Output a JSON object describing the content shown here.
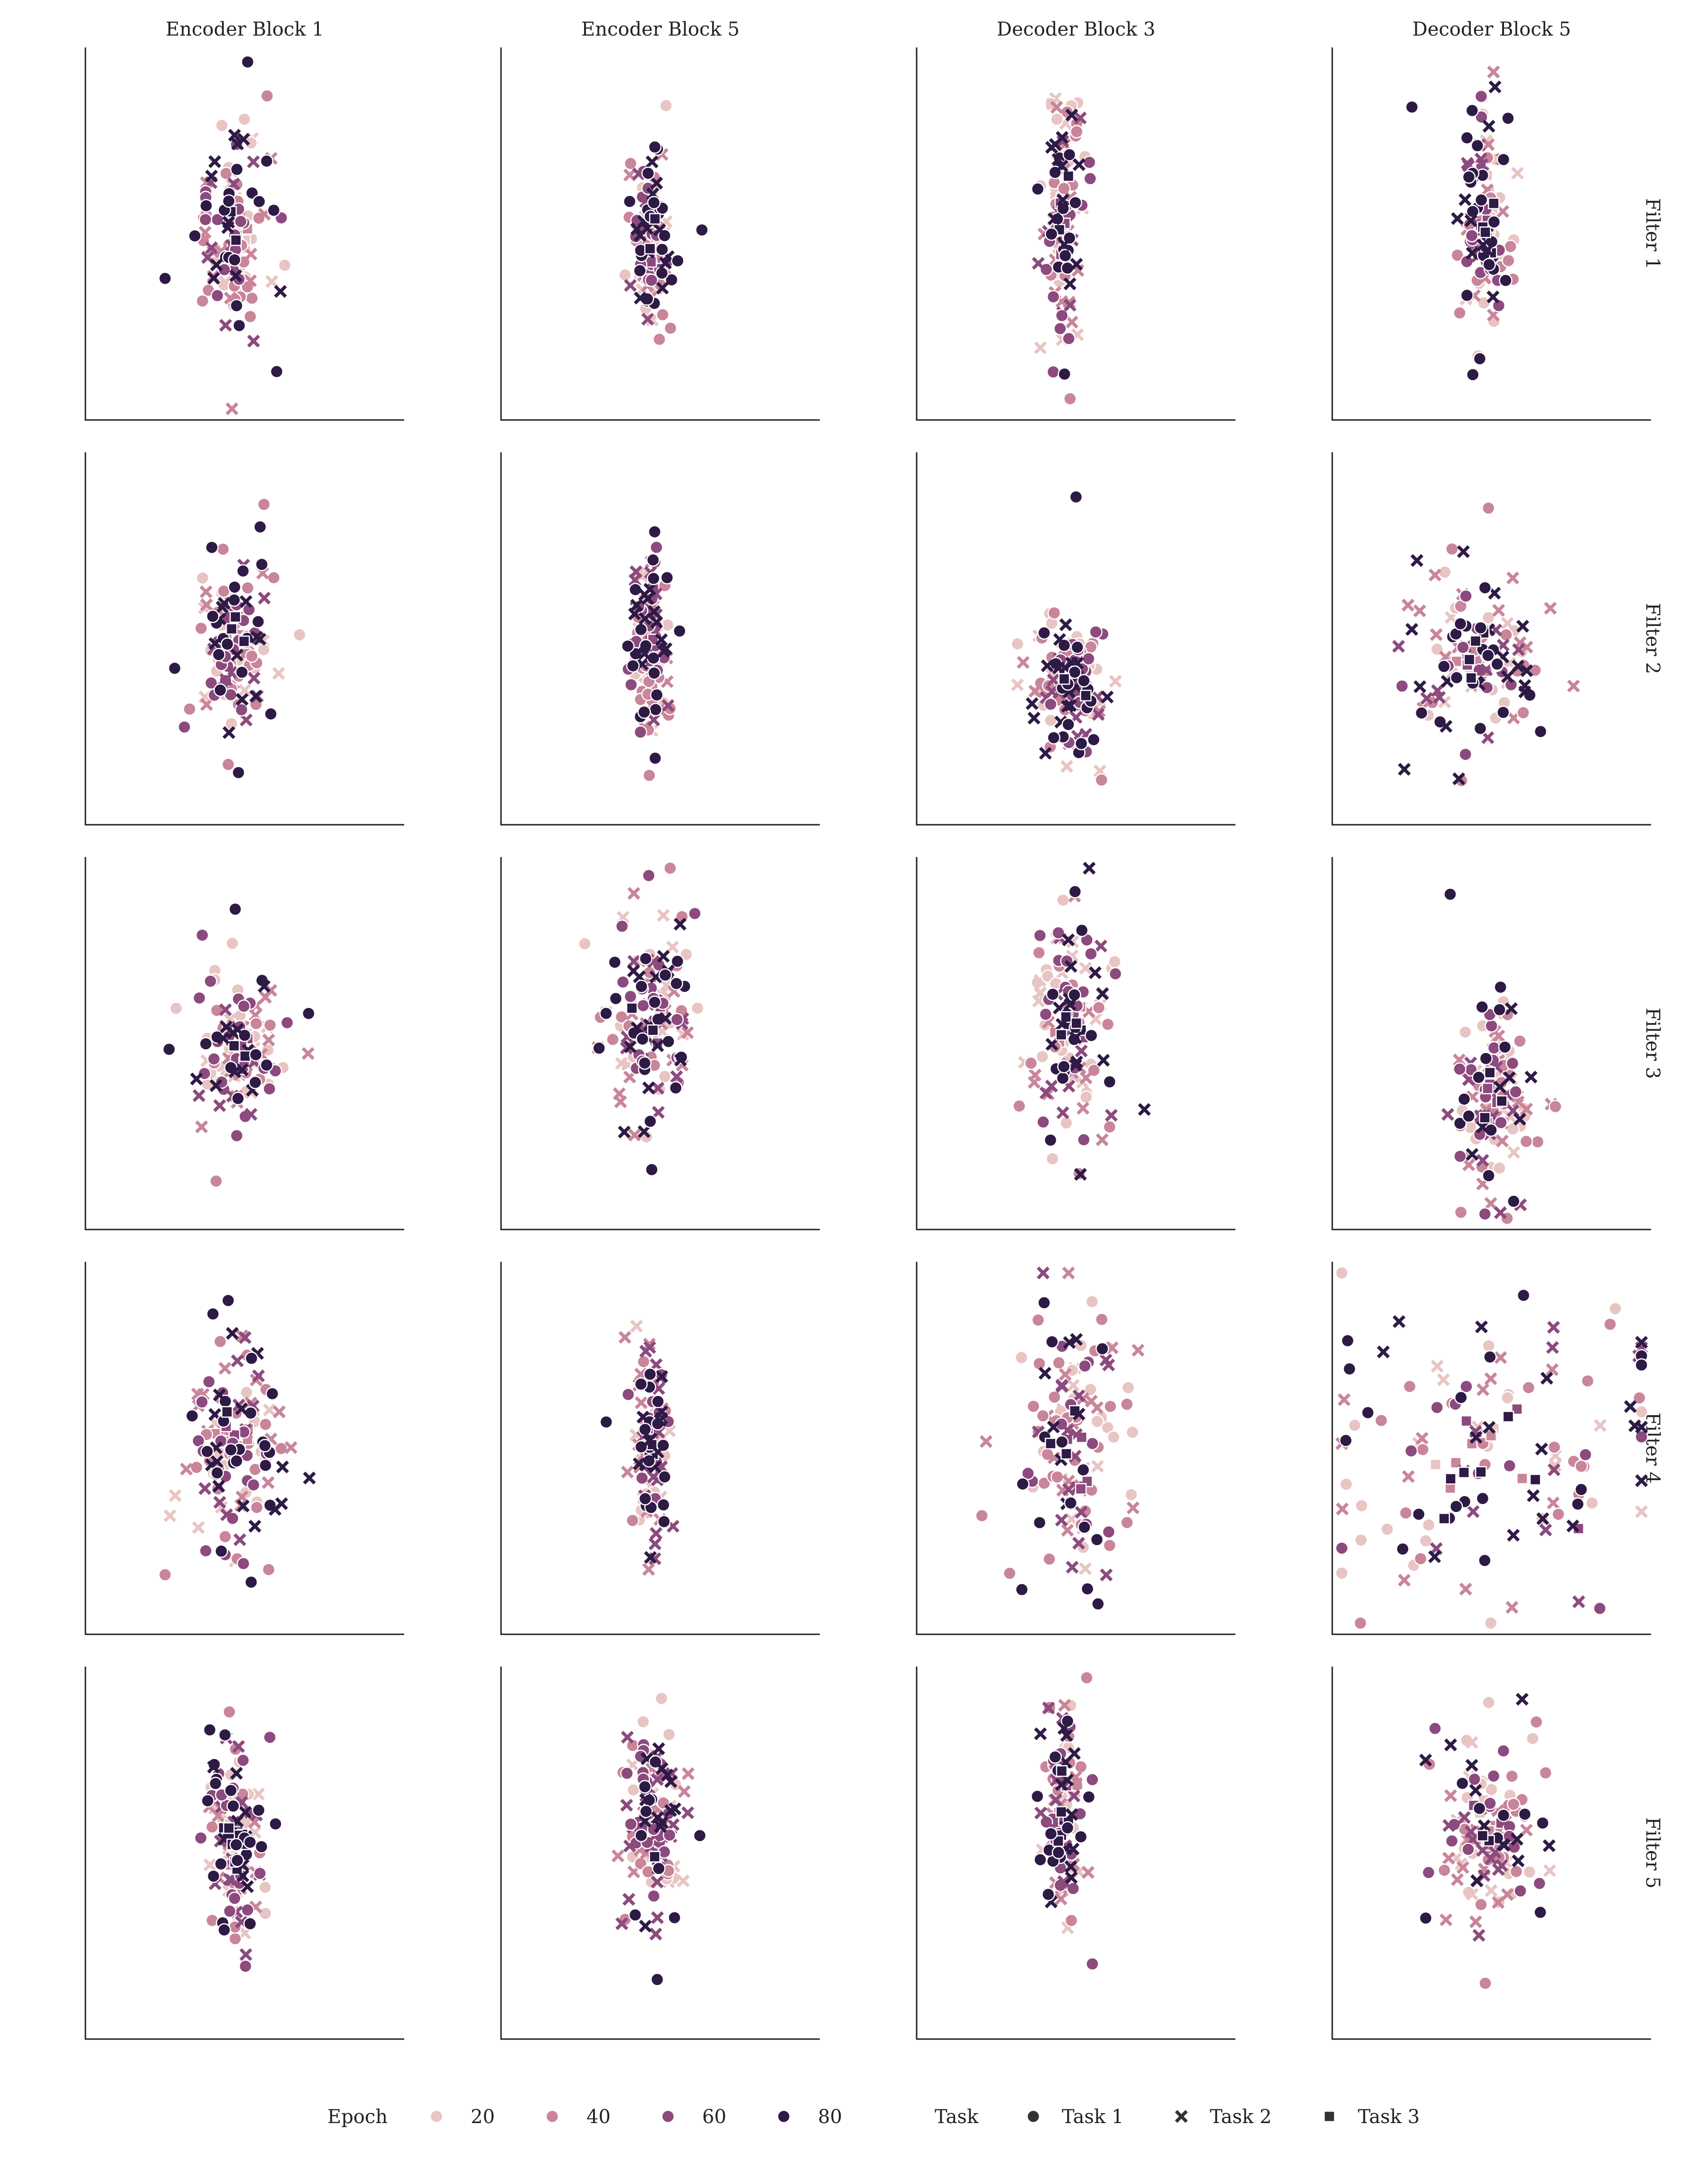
{
  "chart_data": {
    "type": "scatter",
    "columns": [
      "Encoder Block 1",
      "Encoder Block 5",
      "Decoder Block 3",
      "Decoder Block 5"
    ],
    "rows": [
      "Filter 1",
      "Filter 2",
      "Filter 3",
      "Filter 4",
      "Filter 5"
    ],
    "grid": false,
    "axis_ticks": false,
    "legend": {
      "placement": "bottom",
      "epoch": {
        "title": "Epoch",
        "values": [
          20,
          40,
          60,
          80
        ],
        "colors": [
          "#e8c5c3",
          "#c9859a",
          "#8c4a7e",
          "#2d1a45"
        ]
      },
      "task": {
        "title": "Task",
        "labels": [
          "Task 1",
          "Task 2",
          "Task 3"
        ],
        "markers": [
          "circle",
          "x",
          "square"
        ]
      }
    },
    "panels": [
      {
        "column": "Encoder Block 1",
        "row": "Filter 1",
        "x_center": 0.47,
        "y_center": 0.5,
        "x_spread": 0.07,
        "y_spread": 0.13,
        "outliers": [
          [
            0.25,
            0.38
          ],
          [
            0.57,
            0.87
          ],
          [
            0.6,
            0.13
          ]
        ]
      },
      {
        "column": "Encoder Block 5",
        "row": "Filter 1",
        "x_center": 0.47,
        "y_center": 0.48,
        "x_spread": 0.03,
        "y_spread": 0.12,
        "outliers": [
          [
            0.63,
            0.51
          ]
        ]
      },
      {
        "column": "Decoder Block 3",
        "row": "Filter 1",
        "x_center": 0.46,
        "y_center": 0.55,
        "x_spread": 0.03,
        "y_spread": 0.18,
        "outliers": [
          [
            0.38,
            0.62
          ]
        ]
      },
      {
        "column": "Decoder Block 5",
        "row": "Filter 1",
        "x_center": 0.48,
        "y_center": 0.55,
        "x_spread": 0.04,
        "y_spread": 0.16,
        "outliers": [
          [
            0.25,
            0.84
          ]
        ]
      },
      {
        "column": "Encoder Block 1",
        "row": "Filter 2",
        "x_center": 0.47,
        "y_center": 0.48,
        "x_spread": 0.06,
        "y_spread": 0.11,
        "outliers": [
          [
            0.28,
            0.42
          ],
          [
            0.56,
            0.86
          ],
          [
            0.48,
            0.14
          ]
        ]
      },
      {
        "column": "Encoder Block 5",
        "row": "Filter 2",
        "x_center": 0.47,
        "y_center": 0.5,
        "x_spread": 0.03,
        "y_spread": 0.13,
        "outliers": [
          [
            0.56,
            0.52
          ]
        ]
      },
      {
        "column": "Decoder Block 3",
        "row": "Filter 2",
        "x_center": 0.48,
        "y_center": 0.38,
        "x_spread": 0.06,
        "y_spread": 0.09,
        "outliers": [
          [
            0.5,
            0.88
          ],
          [
            0.58,
            0.12
          ]
        ]
      },
      {
        "column": "Decoder Block 5",
        "row": "Filter 2",
        "x_center": 0.46,
        "y_center": 0.45,
        "x_spread": 0.11,
        "y_spread": 0.12,
        "outliers": [
          [
            0.28,
            0.3
          ],
          [
            0.49,
            0.85
          ]
        ]
      },
      {
        "column": "Encoder Block 1",
        "row": "Filter 3",
        "x_center": 0.47,
        "y_center": 0.5,
        "x_spread": 0.07,
        "y_spread": 0.11,
        "outliers": [
          [
            0.7,
            0.58
          ],
          [
            0.41,
            0.13
          ],
          [
            0.47,
            0.86
          ]
        ]
      },
      {
        "column": "Encoder Block 5",
        "row": "Filter 3",
        "x_center": 0.47,
        "y_center": 0.55,
        "x_spread": 0.07,
        "y_spread": 0.15,
        "outliers": [
          [
            0.36,
            0.62
          ]
        ]
      },
      {
        "column": "Decoder Block 3",
        "row": "Filter 3",
        "x_center": 0.48,
        "y_center": 0.55,
        "x_spread": 0.08,
        "y_spread": 0.15,
        "outliers": [
          [
            0.42,
            0.24
          ],
          [
            0.51,
            0.15
          ]
        ]
      },
      {
        "column": "Decoder Block 5",
        "row": "Filter 3",
        "x_center": 0.5,
        "y_center": 0.35,
        "x_spread": 0.06,
        "y_spread": 0.12,
        "outliers": [
          [
            0.37,
            0.9
          ],
          [
            0.7,
            0.33
          ]
        ]
      },
      {
        "column": "Encoder Block 1",
        "row": "Filter 4",
        "x_center": 0.47,
        "y_center": 0.5,
        "x_spread": 0.08,
        "y_spread": 0.13,
        "outliers": [
          [
            0.4,
            0.86
          ],
          [
            0.25,
            0.16
          ],
          [
            0.52,
            0.14
          ]
        ]
      },
      {
        "column": "Encoder Block 5",
        "row": "Filter 4",
        "x_center": 0.47,
        "y_center": 0.5,
        "x_spread": 0.03,
        "y_spread": 0.14,
        "outliers": [
          [
            0.33,
            0.57
          ]
        ]
      },
      {
        "column": "Decoder Block 3",
        "row": "Filter 4",
        "x_center": 0.49,
        "y_center": 0.5,
        "x_spread": 0.09,
        "y_spread": 0.2,
        "outliers": [
          [
            0.4,
            0.89
          ],
          [
            0.66,
            0.3
          ],
          [
            0.33,
            0.12
          ]
        ]
      },
      {
        "column": "Decoder Block 5",
        "row": "Filter 4",
        "x_center": 0.49,
        "y_center": 0.5,
        "x_spread": 0.3,
        "y_spread": 0.22,
        "outliers": [
          [
            0.6,
            0.91
          ]
        ]
      },
      {
        "column": "Encoder Block 1",
        "row": "Filter 5",
        "x_center": 0.47,
        "y_center": 0.52,
        "x_spread": 0.05,
        "y_spread": 0.14,
        "outliers": [
          [
            0.39,
            0.83
          ]
        ]
      },
      {
        "column": "Encoder Block 5",
        "row": "Filter 5",
        "x_center": 0.48,
        "y_center": 0.58,
        "x_spread": 0.05,
        "y_spread": 0.14,
        "outliers": [
          [
            0.49,
            0.16
          ]
        ]
      },
      {
        "column": "Decoder Block 3",
        "row": "Filter 5",
        "x_center": 0.46,
        "y_center": 0.58,
        "x_spread": 0.03,
        "y_spread": 0.16,
        "outliers": [
          [
            0.54,
            0.65
          ]
        ]
      },
      {
        "column": "Decoder Block 5",
        "row": "Filter 5",
        "x_center": 0.48,
        "y_center": 0.56,
        "x_spread": 0.09,
        "y_spread": 0.12,
        "outliers": [
          [
            0.66,
            0.58
          ],
          [
            0.48,
            0.15
          ]
        ]
      }
    ]
  }
}
